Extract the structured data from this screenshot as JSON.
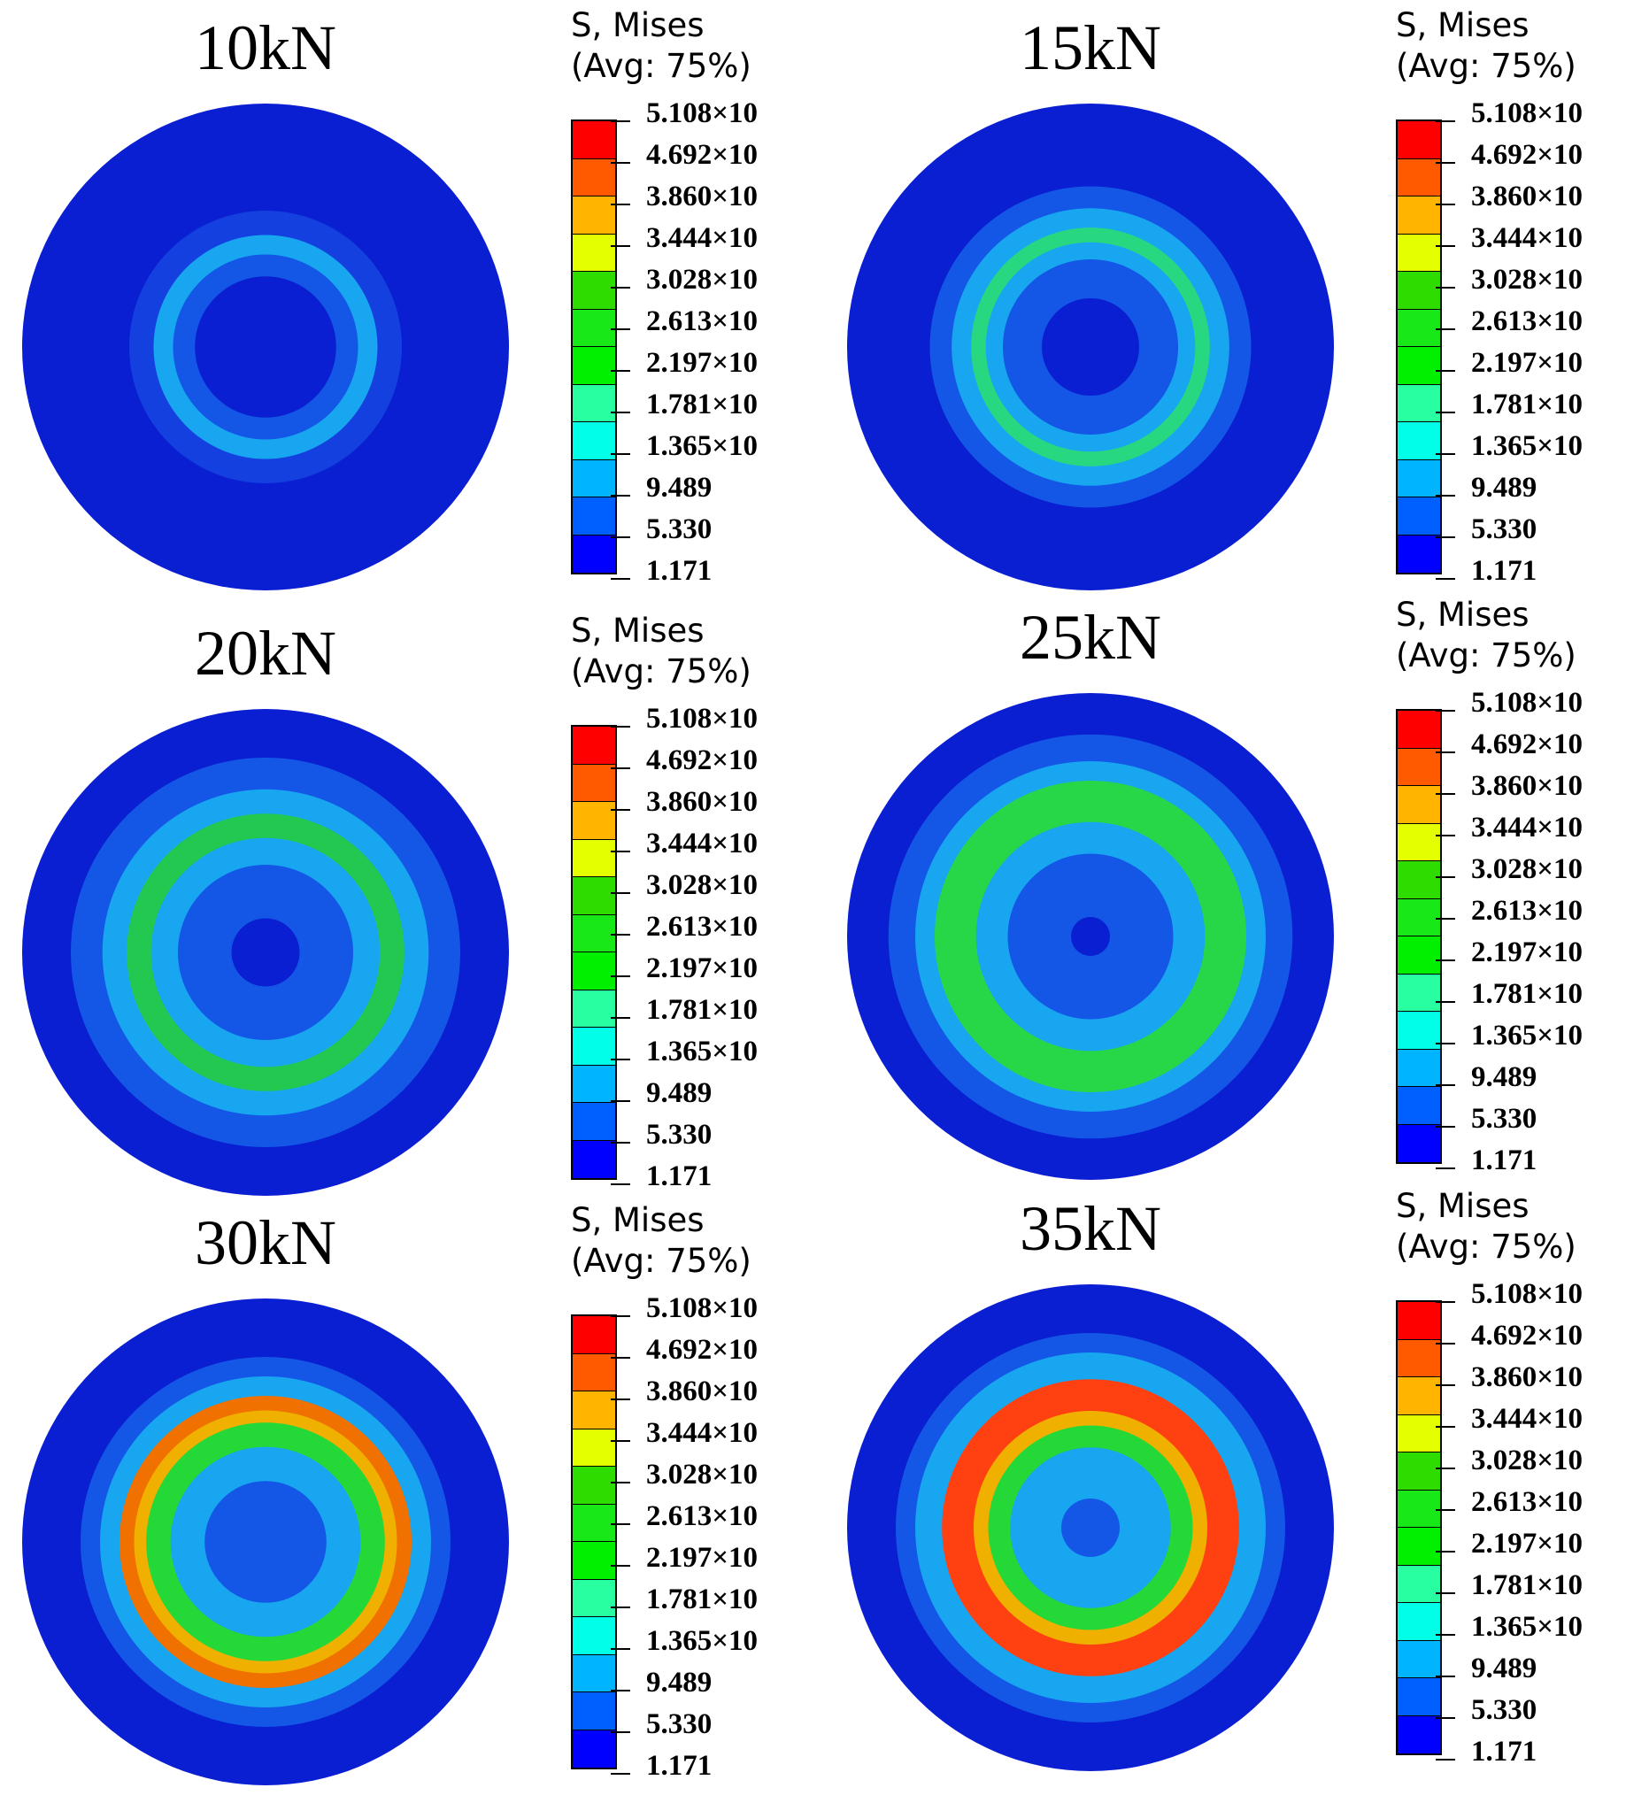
{
  "legend": {
    "title_line1": "S, Mises",
    "title_line2": "(Avg: 75%)",
    "values": [
      "5.108×10",
      "4.692×10",
      "3.860×10",
      "3.444×10",
      "3.028×10",
      "2.613×10",
      "2.197×10",
      "1.781×10",
      "1.365×10",
      "9.489",
      "5.330",
      "1.171"
    ],
    "colors": [
      "#ff0000",
      "#ff5a00",
      "#ffb400",
      "#e4ff00",
      "#2fdc00",
      "#18e818",
      "#00f000",
      "#28ffa0",
      "#00ffe6",
      "#00b4ff",
      "#0060ff",
      "#0000ff"
    ]
  },
  "panels": [
    {
      "label": "10kN",
      "rings": [
        [
          "#0a1ed2",
          1.0
        ],
        [
          "#1440e0",
          0.56
        ],
        [
          "#18a6f0",
          0.46
        ],
        [
          "#1457e6",
          0.38
        ],
        [
          "#0a1ed2",
          0.29
        ]
      ]
    },
    {
      "label": "15kN",
      "rings": [
        [
          "#0a1ed2",
          1.0
        ],
        [
          "#1457e6",
          0.66
        ],
        [
          "#18a6f0",
          0.57
        ],
        [
          "#28d880",
          0.49
        ],
        [
          "#18a6f0",
          0.43
        ],
        [
          "#1457e6",
          0.36
        ],
        [
          "#0a1ed2",
          0.2
        ]
      ]
    },
    {
      "label": "20kN",
      "rings": [
        [
          "#0a1ed2",
          1.0
        ],
        [
          "#1457e6",
          0.8
        ],
        [
          "#18a6f0",
          0.67
        ],
        [
          "#22c850",
          0.57
        ],
        [
          "#18a6f0",
          0.47
        ],
        [
          "#1457e6",
          0.36
        ],
        [
          "#0a1ed2",
          0.14
        ]
      ]
    },
    {
      "label": "25kN",
      "rings": [
        [
          "#0a1ed2",
          1.0
        ],
        [
          "#1457e6",
          0.83
        ],
        [
          "#18a6f0",
          0.72
        ],
        [
          "#26d848",
          0.64
        ],
        [
          "#18a6f0",
          0.47
        ],
        [
          "#1457e6",
          0.34
        ],
        [
          "#0a1ed2",
          0.08
        ]
      ]
    },
    {
      "label": "30kN",
      "rings": [
        [
          "#0a1ed2",
          1.0
        ],
        [
          "#1457e6",
          0.76
        ],
        [
          "#18a6f0",
          0.68
        ],
        [
          "#f07000",
          0.6
        ],
        [
          "#f0b000",
          0.54
        ],
        [
          "#24d838",
          0.49
        ],
        [
          "#18a6f0",
          0.39
        ],
        [
          "#1457e6",
          0.25
        ]
      ]
    },
    {
      "label": "35kN",
      "rings": [
        [
          "#0a1ed2",
          1.0
        ],
        [
          "#1457e6",
          0.8
        ],
        [
          "#18a6f0",
          0.72
        ],
        [
          "#ff4010",
          0.61
        ],
        [
          "#f0b000",
          0.48
        ],
        [
          "#24d838",
          0.42
        ],
        [
          "#18a6f0",
          0.33
        ],
        [
          "#1457e6",
          0.12
        ]
      ]
    }
  ]
}
